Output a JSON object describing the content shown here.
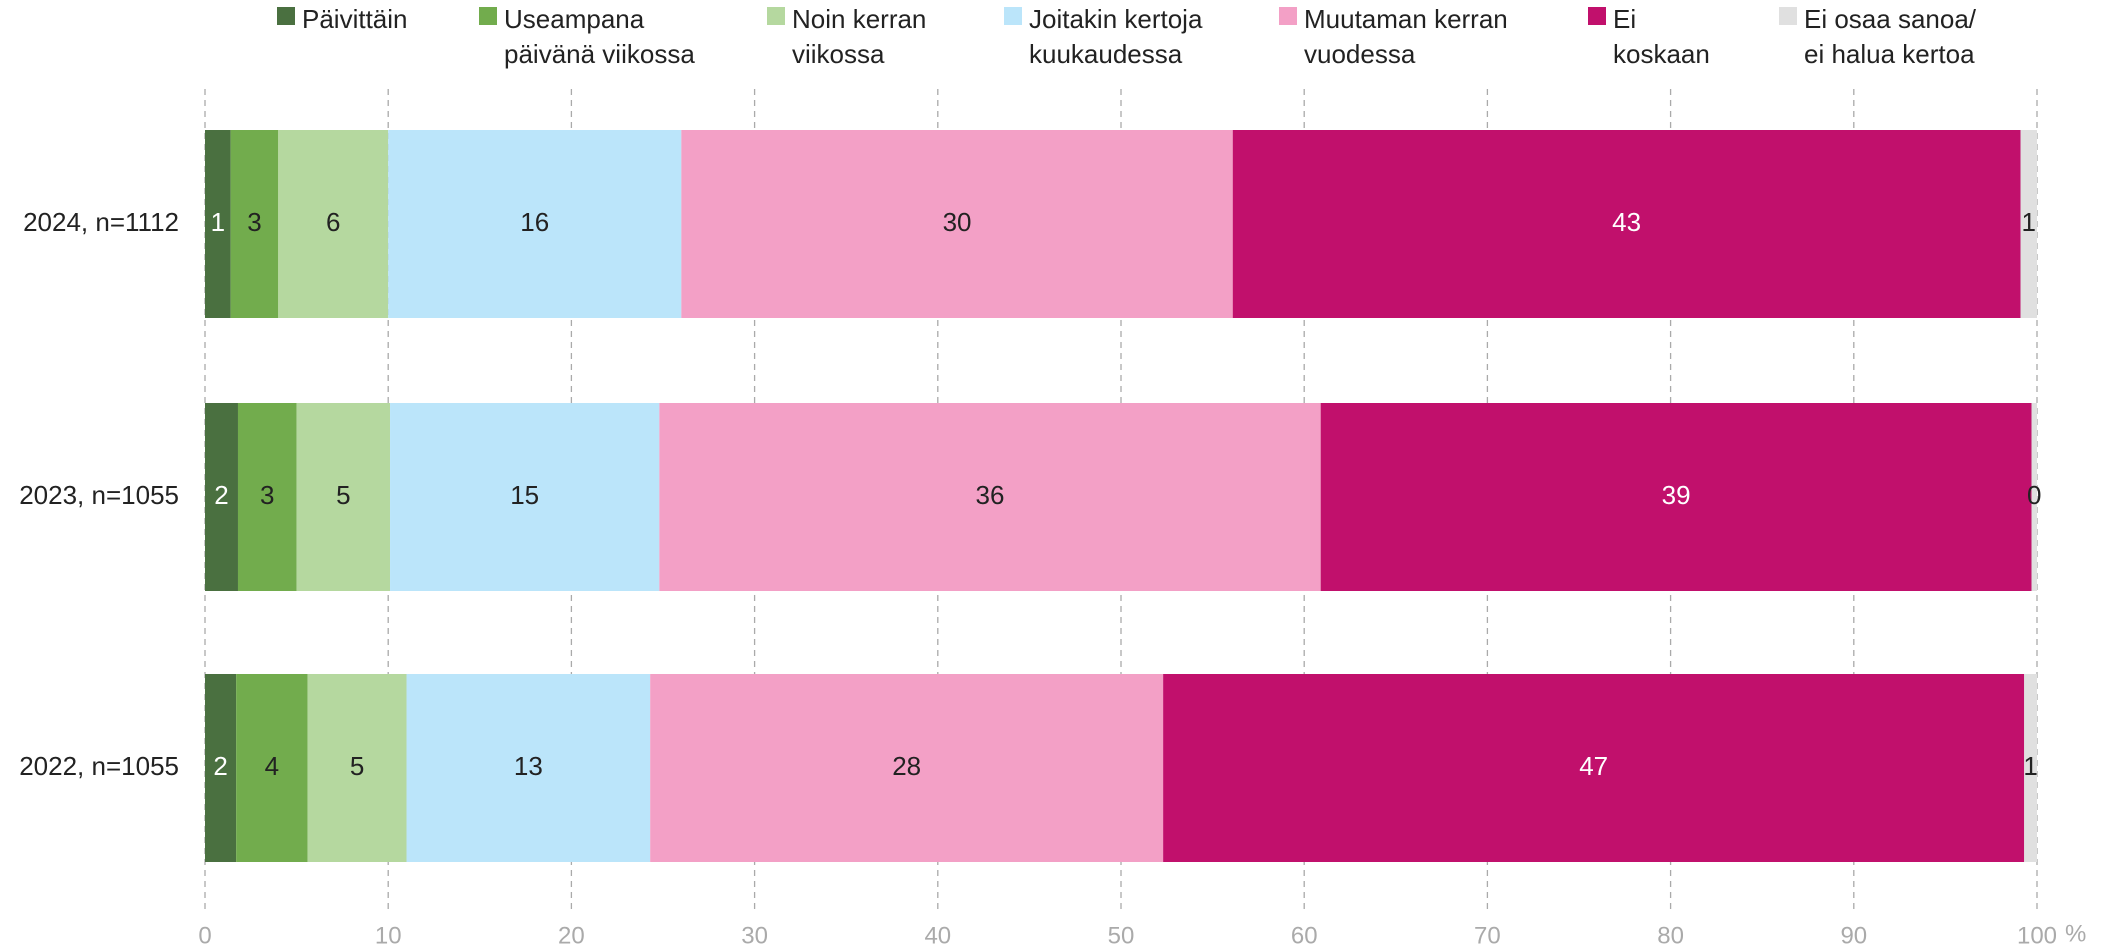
{
  "chart_data": {
    "type": "stacked-barh",
    "categories": [
      "2024, n=1112",
      "2023, n=1055",
      "2022, n=1055"
    ],
    "series": [
      {
        "name": "Päivittäin",
        "color": "#4a7040",
        "values": [
          1.4,
          1.8,
          1.7
        ],
        "value_labels": [
          "1",
          "2",
          "2"
        ]
      },
      {
        "name": "Useampana\npäivänä viikossa",
        "color": "#72ac4d",
        "values": [
          2.6,
          3.2,
          3.9
        ],
        "value_labels": [
          "3",
          "3",
          "4"
        ]
      },
      {
        "name": "Noin kerran\nviikossa",
        "color": "#b5d89f",
        "values": [
          6.0,
          5.1,
          5.4
        ],
        "value_labels": [
          "6",
          "5",
          "5"
        ]
      },
      {
        "name": "Joitakin kertoja\nkuukaudessa",
        "color": "#bbe5fa",
        "values": [
          16.0,
          14.7,
          13.3
        ],
        "value_labels": [
          "16",
          "15",
          "13"
        ]
      },
      {
        "name": "Muutaman kerran\nvuodessa",
        "color": "#f3a0c6",
        "values": [
          30.1,
          36.1,
          28.0
        ],
        "value_labels": [
          "30",
          "36",
          "28"
        ]
      },
      {
        "name": "Ei\nkoskaan",
        "color": "#c1106c",
        "values": [
          43.0,
          38.8,
          47.0
        ],
        "value_labels": [
          "43",
          "39",
          "47"
        ]
      },
      {
        "name": "Ei osaa sanoa/\nei halua kertoa",
        "color": "#e0e0e0",
        "values": [
          0.9,
          0.3,
          0.7
        ],
        "value_labels": [
          "1",
          "0",
          "1"
        ]
      }
    ],
    "xlim": [
      0,
      100
    ],
    "xticks": [
      0,
      10,
      20,
      30,
      40,
      50,
      60,
      70,
      80,
      90,
      100
    ],
    "x_label": "%",
    "grid": true,
    "legend": "top"
  }
}
